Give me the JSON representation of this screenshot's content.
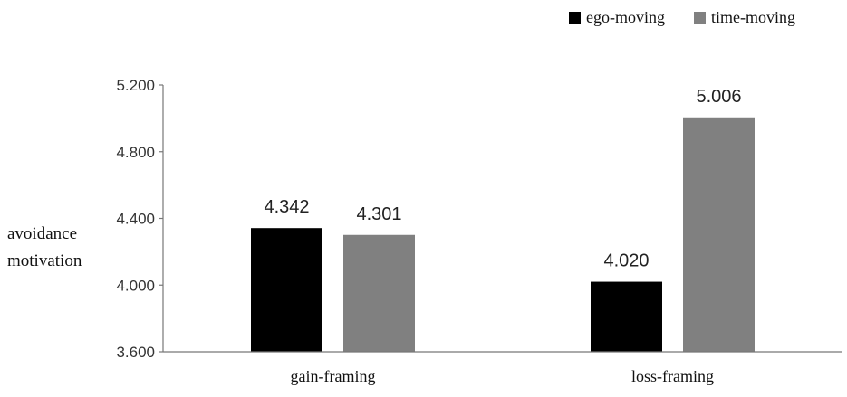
{
  "chart_data": {
    "type": "bar",
    "categories": [
      "gain-framing",
      "loss-framing"
    ],
    "series": [
      {
        "name": "ego-moving",
        "color": "#000000",
        "values": [
          4.342,
          4.02
        ],
        "labels": [
          "4.342",
          "4.020"
        ]
      },
      {
        "name": "time-moving",
        "color": "#808080",
        "values": [
          4.301,
          5.006
        ],
        "labels": [
          "4.301",
          "5.006"
        ]
      }
    ],
    "title": "",
    "xlabel": "",
    "ylabel_lines": [
      "avoidance",
      "motivation"
    ],
    "ylim": [
      3.6,
      5.2
    ],
    "yticks": [
      3.6,
      4.0,
      4.4,
      4.8,
      5.2
    ],
    "ytick_labels": [
      "3.600",
      "4.000",
      "4.400",
      "4.800",
      "5.200"
    ],
    "grid": false,
    "legend_position": "top-right"
  }
}
